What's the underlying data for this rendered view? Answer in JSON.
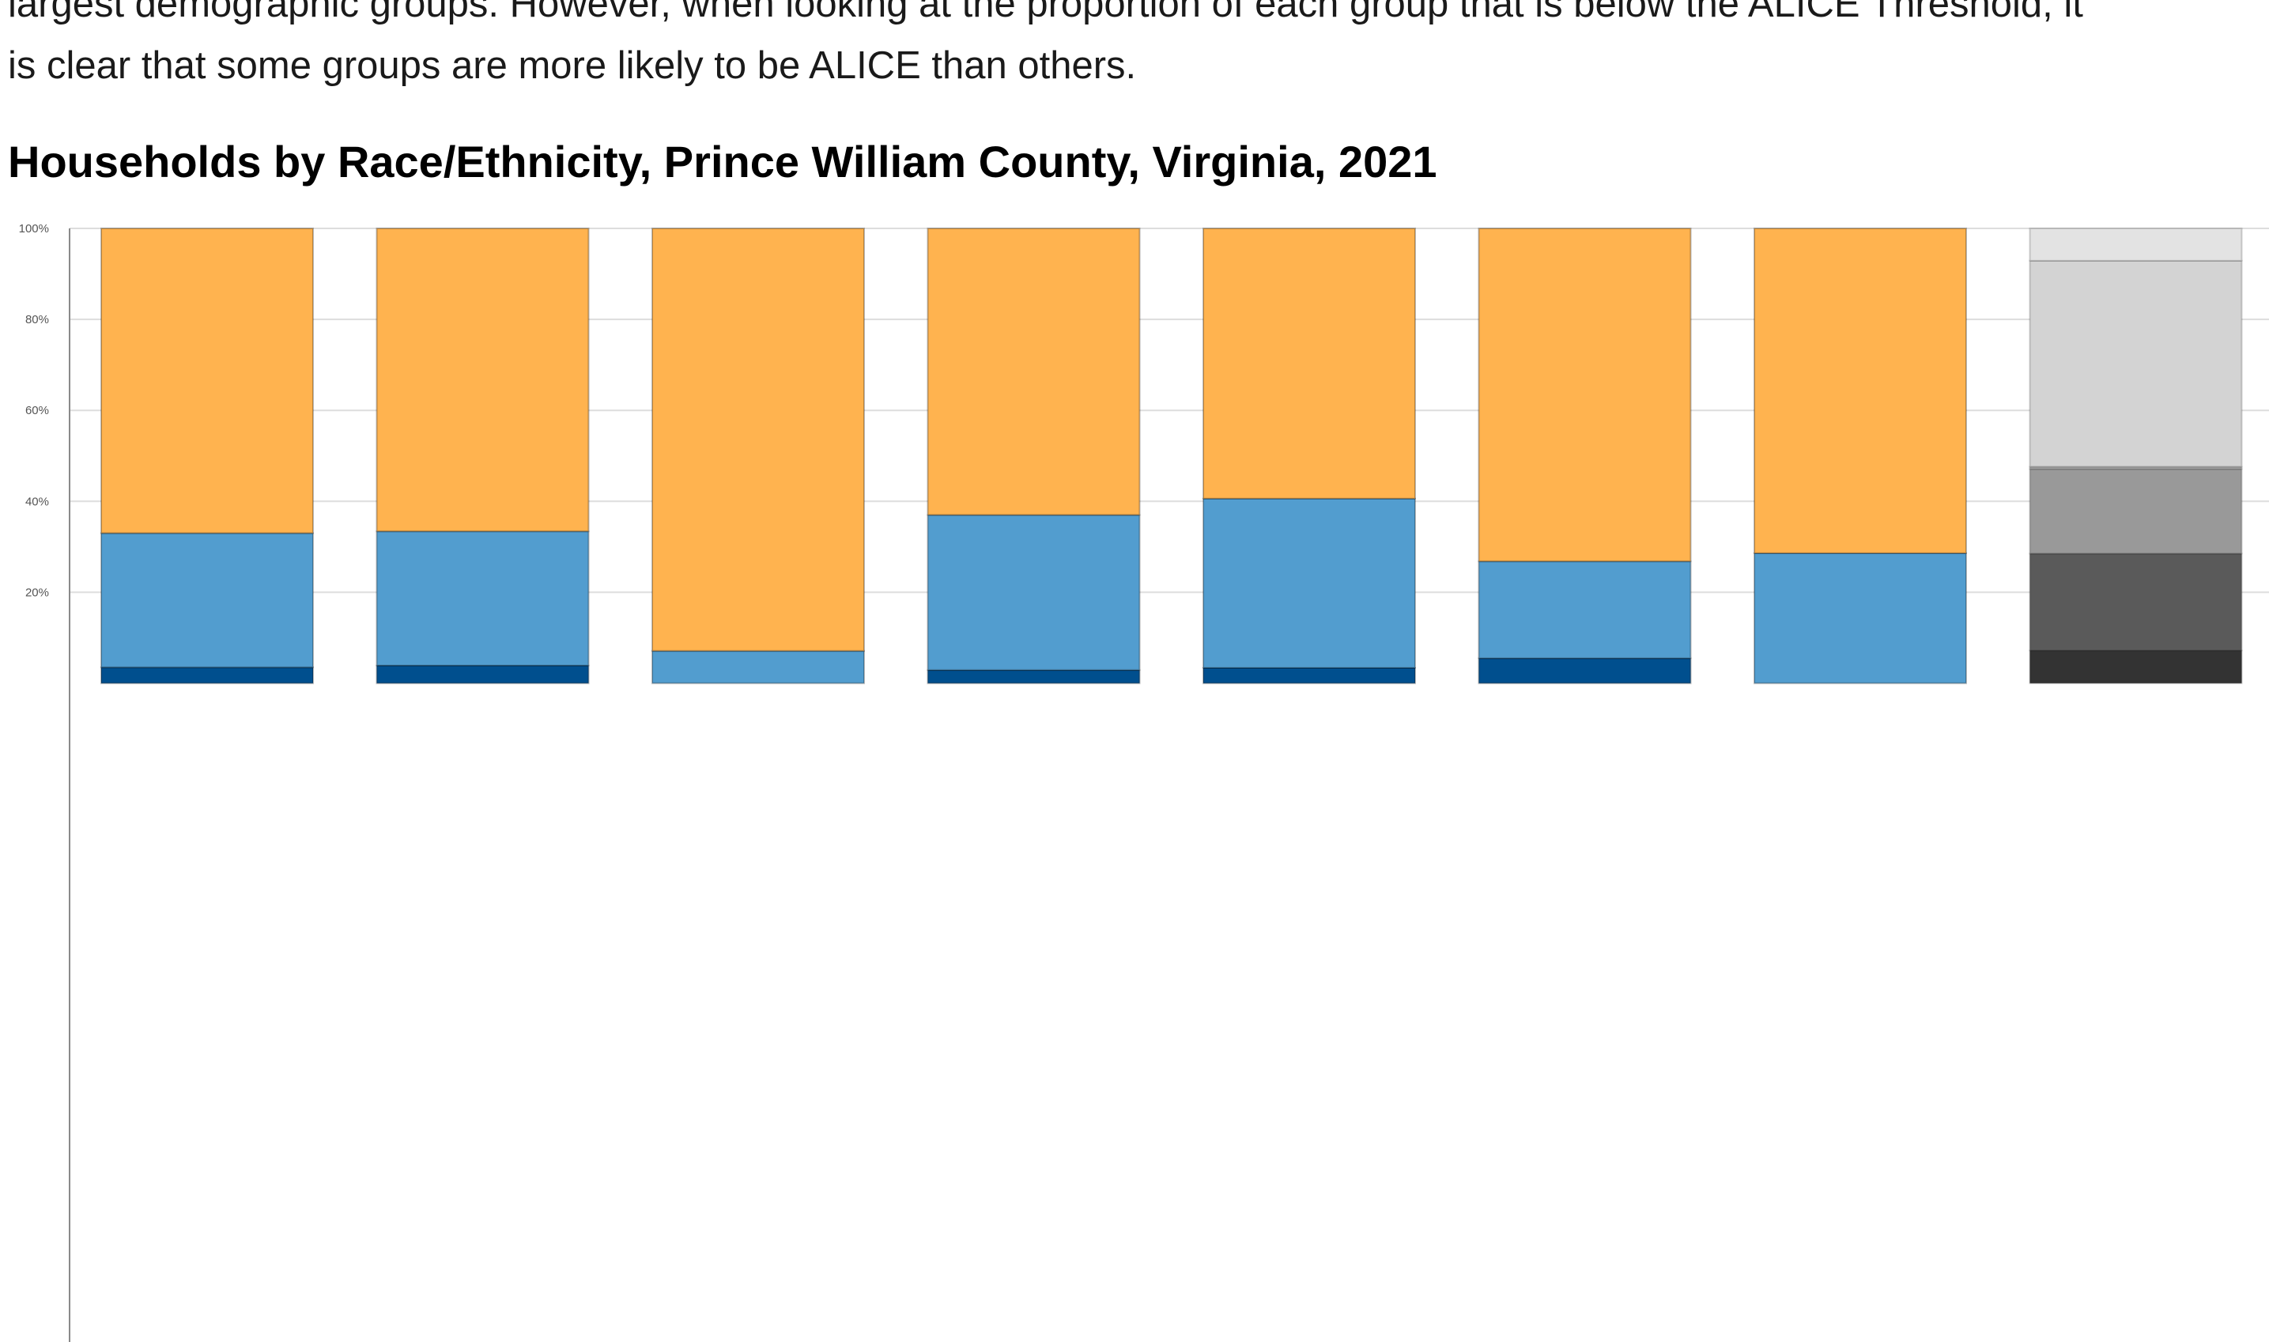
{
  "intro": {
    "line1": "largest demographic groups. However, when looking at the proportion of each group that is below the ALICE Threshold, it",
    "line2": "is clear that some groups are more likely to be ALICE than others."
  },
  "chart_title": "Households by Race/Ethnicity, Prince William County, Virginia, 2021",
  "chart_data": {
    "type": "bar",
    "stacked": true,
    "percent": true,
    "title": "Households by Race/Ethnicity, Prince William County, Virginia, 2021",
    "xlabel": "",
    "ylabel": "",
    "ylim": [
      0,
      100
    ],
    "y_ticks": [
      "20%",
      "40%",
      "60%",
      "80%",
      "100%"
    ],
    "y_tick_values": [
      20,
      40,
      60,
      80,
      100
    ],
    "grid": true,
    "legend": "none",
    "categories": [
      "",
      "",
      "",
      "",
      "",
      "",
      "",
      ""
    ],
    "series": [
      {
        "values": [
          3.5,
          3.9,
          0,
          2.9,
          3.4,
          5.5,
          0,
          0
        ]
      },
      {
        "values": [
          29.5,
          29.5,
          7.1,
          34.1,
          37.2,
          21.3,
          28.6,
          0
        ]
      },
      {
        "values": [
          67.0,
          66.6,
          92.9,
          63.0,
          59.4,
          73.2,
          71.4,
          0
        ]
      }
    ],
    "total_bar_segments": [
      7.2,
      21.3,
      18.6,
      0.5,
      45.3,
      7.1
    ],
    "colors": {
      "poverty": "#004f8e",
      "alice": "#529dcf",
      "above": "#ffb34f",
      "total_segments": [
        "#333333",
        "#5a5a5a",
        "#999999",
        "#b3b3b3",
        "#d3d3d3",
        "#e3e3e3"
      ],
      "grid": "#dddddd",
      "axis": "#8a8a8a"
    }
  }
}
